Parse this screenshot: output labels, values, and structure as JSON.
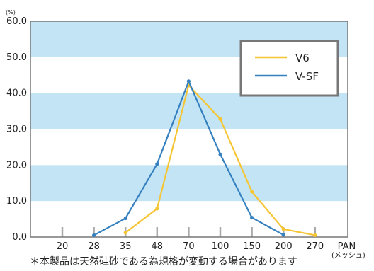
{
  "chart_data": {
    "type": "line",
    "y_unit": "(%)",
    "x_unit": "(メッシュ)",
    "categories": [
      "20",
      "28",
      "35",
      "48",
      "70",
      "100",
      "150",
      "200",
      "270",
      "PAN"
    ],
    "ylim": [
      0,
      60
    ],
    "yticks": [
      "0.0",
      "10.0",
      "20.0",
      "30.0",
      "40.0",
      "50.0",
      "60.0"
    ],
    "legend_position": "top-right",
    "series": [
      {
        "name": "V6",
        "color": "#f5c533",
        "values": [
          null,
          null,
          1.2,
          7.9,
          42.2,
          32.8,
          12.6,
          2.2,
          0.5,
          null
        ]
      },
      {
        "name": "V-SF",
        "color": "#3580bf",
        "values": [
          null,
          0.5,
          5.2,
          20.3,
          43.3,
          23.0,
          5.4,
          0.6,
          null,
          null
        ]
      }
    ],
    "colors": {
      "band": "#c3e4f5",
      "frame": "#777777",
      "tick_mark": "#aaaaaa"
    }
  },
  "note": "＊本製品は天然硅砂である為規格が変動する場合があります"
}
